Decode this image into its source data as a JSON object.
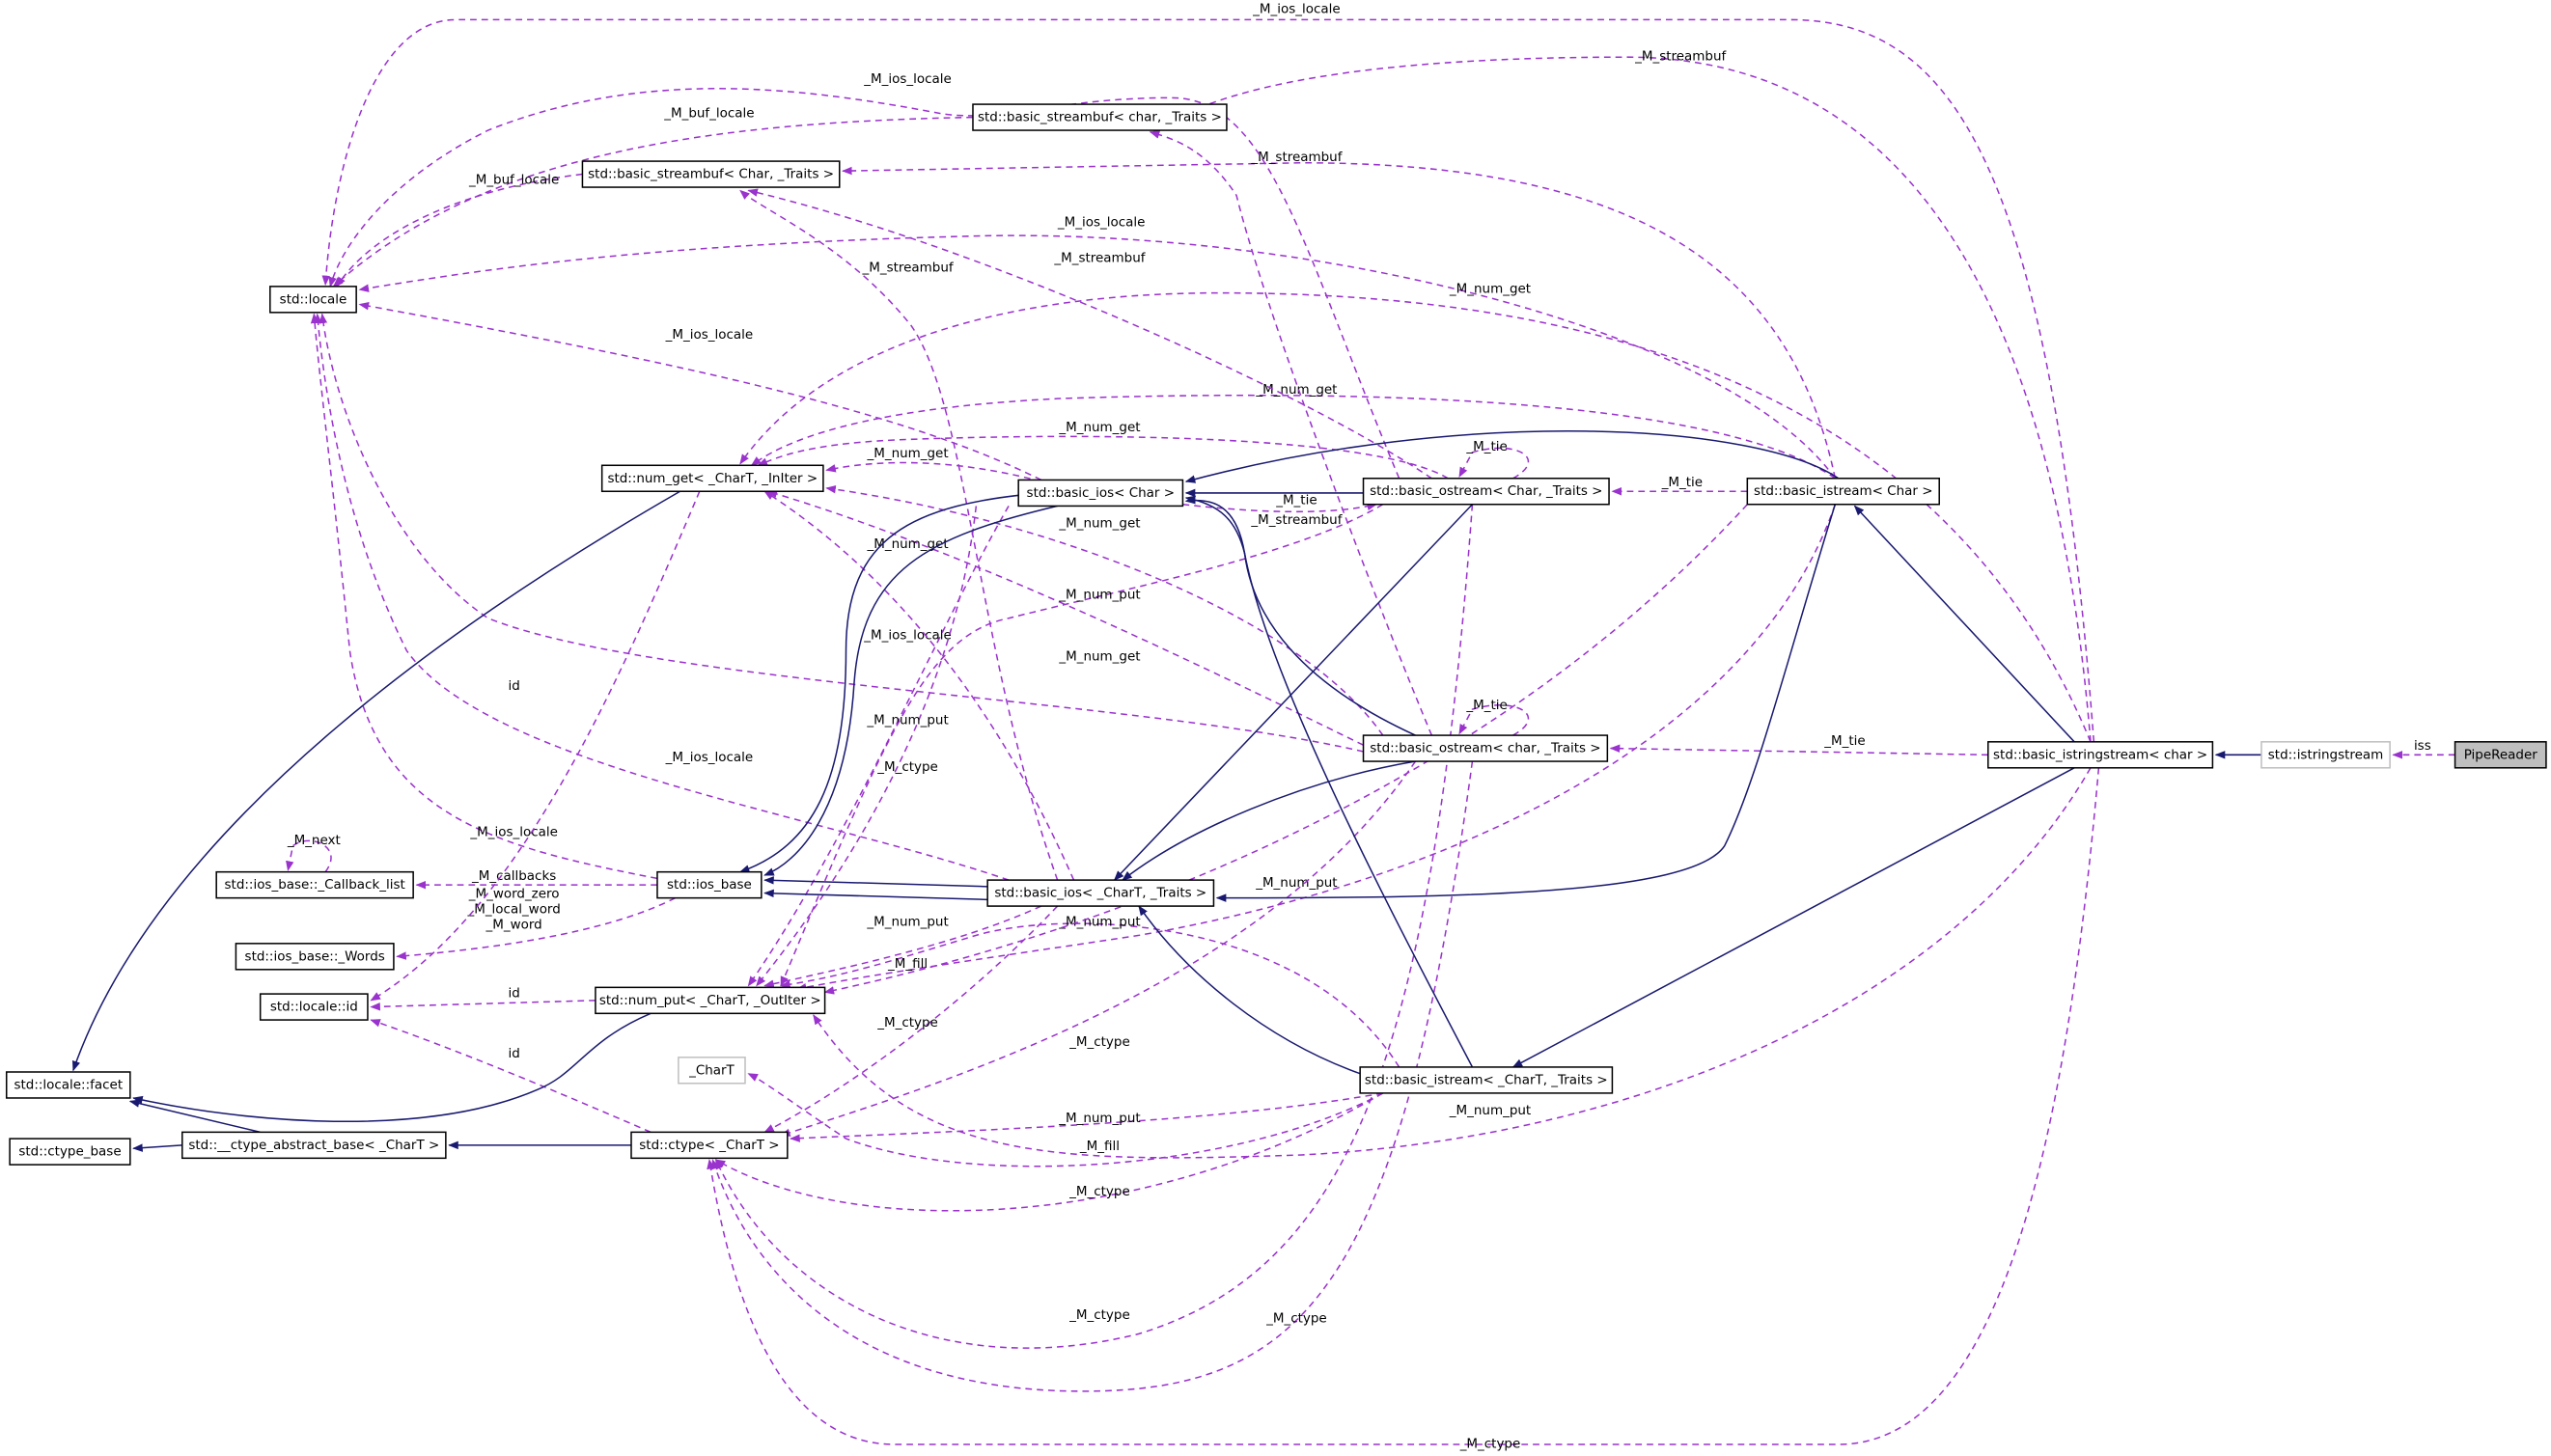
{
  "colors": {
    "usage_edge": "#9a32cd",
    "inheritance_edge": "#191970",
    "focus_node_fill": "#bfbfbf"
  },
  "nodes": [
    {
      "id": "locale",
      "label": "std::locale",
      "style": "normal"
    },
    {
      "id": "sb_char",
      "label": "std::basic_streambuf< char, _Traits >",
      "style": "normal"
    },
    {
      "id": "sb_Char",
      "label": "std::basic_streambuf< Char, _Traits >",
      "style": "normal"
    },
    {
      "id": "num_get",
      "label": "std::num_get< _CharT, _InIter >",
      "style": "normal"
    },
    {
      "id": "bios_Char",
      "label": "std::basic_ios< Char >",
      "style": "normal"
    },
    {
      "id": "bos_Char",
      "label": "std::basic_ostream< Char, _Traits >",
      "style": "normal"
    },
    {
      "id": "bis_Char",
      "label": "std::basic_istream< Char >",
      "style": "normal"
    },
    {
      "id": "cb_list",
      "label": "std::ios_base::_Callback_list",
      "style": "normal"
    },
    {
      "id": "ios_base",
      "label": "std::ios_base",
      "style": "normal"
    },
    {
      "id": "bios_CharT",
      "label": "std::basic_ios< _CharT, _Traits >",
      "style": "normal"
    },
    {
      "id": "bos_char",
      "label": "std::basic_ostream< char, _Traits >",
      "style": "normal"
    },
    {
      "id": "biss",
      "label": "std::basic_istringstream< char >",
      "style": "normal"
    },
    {
      "id": "iss",
      "label": "std::istringstream",
      "style": "gray"
    },
    {
      "id": "pipe",
      "label": "PipeReader",
      "style": "focus"
    },
    {
      "id": "words",
      "label": "std::ios_base::_Words",
      "style": "normal"
    },
    {
      "id": "locid",
      "label": "std::locale::id",
      "style": "normal"
    },
    {
      "id": "num_put",
      "label": "std::num_put< _CharT, _OutIter >",
      "style": "normal"
    },
    {
      "id": "chart",
      "label": "_CharT",
      "style": "gray"
    },
    {
      "id": "facet",
      "label": "std::locale::facet",
      "style": "normal"
    },
    {
      "id": "ctype_base",
      "label": "std::ctype_base",
      "style": "normal"
    },
    {
      "id": "cab",
      "label": "std::__ctype_abstract_base< _CharT >",
      "style": "normal"
    },
    {
      "id": "ctype",
      "label": "std::ctype< _CharT >",
      "style": "normal"
    },
    {
      "id": "bis_CharT",
      "label": "std::basic_istream< _CharT, _Traits >",
      "style": "normal"
    }
  ],
  "edges": [
    {
      "from": "pipe",
      "to": "iss",
      "kind": "use",
      "label": [
        "iss"
      ]
    },
    {
      "from": "biss",
      "to": "bos_char",
      "kind": "use",
      "label": [
        "_M_tie"
      ]
    },
    {
      "from": "biss",
      "to": "locale",
      "kind": "use",
      "label": [
        "_M_ios_locale"
      ]
    },
    {
      "from": "biss",
      "to": "sb_char",
      "kind": "use",
      "label": [
        "_M_streambuf"
      ]
    },
    {
      "from": "bis_Char",
      "to": "sb_Char",
      "kind": "use",
      "label": [
        "_M_streambuf"
      ]
    },
    {
      "from": "bis_Char",
      "to": "locale",
      "kind": "use",
      "label": [
        "_M_ios_locale"
      ]
    },
    {
      "from": "biss",
      "to": "num_get",
      "kind": "use",
      "label": [
        "_M_num_get"
      ]
    },
    {
      "from": "bis_Char",
      "to": "num_get",
      "kind": "use",
      "label": [
        "_M_num_get"
      ]
    },
    {
      "from": "bis_Char",
      "to": "bos_Char",
      "kind": "use",
      "label": [
        "_M_tie"
      ]
    },
    {
      "from": "bos_Char",
      "to": "bos_Char",
      "kind": "use",
      "label": [
        "_M_tie"
      ]
    },
    {
      "from": "bos_Char",
      "to": "num_get",
      "kind": "use",
      "label": [
        "_M_num_get"
      ]
    },
    {
      "from": "bos_Char",
      "to": "sb_Char",
      "kind": "use",
      "label": [
        "_M_streambuf"
      ]
    },
    {
      "from": "bios_Char",
      "to": "bos_Char",
      "kind": "use",
      "label": [
        "_M_tie"
      ]
    },
    {
      "from": "bios_Char",
      "to": "locale",
      "kind": "use",
      "label": [
        "_M_ios_locale"
      ]
    },
    {
      "from": "bios_Char",
      "to": "num_get",
      "kind": "use",
      "label": [
        "_M_num_get"
      ]
    },
    {
      "from": "bios_CharT",
      "to": "sb_Char",
      "kind": "use",
      "label": [
        "_M_streambuf"
      ]
    },
    {
      "from": "bos_char",
      "to": "bos_char",
      "kind": "use",
      "label": [
        "_M_tie"
      ]
    },
    {
      "from": "bos_char",
      "to": "sb_char",
      "kind": "use",
      "label": [
        "_M_streambuf"
      ]
    },
    {
      "from": "bos_char",
      "to": "num_get",
      "kind": "use",
      "label": [
        "_M_num_get"
      ]
    },
    {
      "from": "bos_char",
      "to": "num_get",
      "kind": "use",
      "label": [
        "_M_num_get"
      ]
    },
    {
      "from": "bos_char",
      "to": "locale",
      "kind": "use",
      "label": [
        "_M_ios_locale"
      ]
    },
    {
      "from": "bios_CharT",
      "to": "locale",
      "kind": "use",
      "label": [
        "_M_ios_locale"
      ]
    },
    {
      "from": "ios_base",
      "to": "locale",
      "kind": "use",
      "label": [
        "_M_ios_locale"
      ]
    },
    {
      "from": "ios_base",
      "to": "cb_list",
      "kind": "use",
      "label": [
        "_M_callbacks"
      ]
    },
    {
      "from": "ios_base",
      "to": "words",
      "kind": "use",
      "label": [
        "_M_word_zero",
        "_M_local_word",
        "_M_word"
      ]
    },
    {
      "from": "cb_list",
      "to": "cb_list",
      "kind": "use",
      "label": [
        "_M_next"
      ]
    },
    {
      "from": "num_get",
      "to": "locid",
      "kind": "use",
      "label": [
        "id"
      ]
    },
    {
      "from": "num_put",
      "to": "locid",
      "kind": "use",
      "label": [
        "id"
      ]
    },
    {
      "from": "ctype",
      "to": "locid",
      "kind": "use",
      "label": [
        "id"
      ]
    },
    {
      "from": "bios_CharT",
      "to": "num_put",
      "kind": "use",
      "label": [
        "_M_num_put"
      ]
    },
    {
      "from": "bios_CharT",
      "to": "ctype",
      "kind": "use",
      "label": [
        "_M_ctype"
      ]
    },
    {
      "from": "bios_Char",
      "to": "ctype",
      "kind": "use",
      "label": [
        "_M_ctype"
      ]
    },
    {
      "from": "bios_Char",
      "to": "num_put",
      "kind": "use",
      "label": [
        "_M_num_put"
      ]
    },
    {
      "from": "bos_Char",
      "to": "num_put",
      "kind": "use",
      "label": [
        "_M_num_put"
      ]
    },
    {
      "from": "bis_CharT",
      "to": "num_put",
      "kind": "use",
      "label": [
        "_M_num_put"
      ]
    },
    {
      "from": "bis_Char",
      "to": "num_put",
      "kind": "use",
      "label": [
        "_M_num_put"
      ]
    },
    {
      "from": "bis_Char",
      "to": "num_put",
      "kind": "use",
      "label": [
        "_M_fill"
      ]
    },
    {
      "from": "bos_char",
      "to": "ctype",
      "kind": "use",
      "label": [
        "_M_ctype"
      ]
    },
    {
      "from": "bis_CharT",
      "to": "ctype",
      "kind": "use",
      "label": [
        "_M_num_put"
      ]
    },
    {
      "from": "bis_CharT",
      "to": "chart",
      "kind": "use",
      "label": [
        "_M_fill"
      ]
    },
    {
      "from": "bis_CharT",
      "to": "ctype",
      "kind": "use",
      "label": [
        "_M_ctype"
      ]
    },
    {
      "from": "bos_Char",
      "to": "ctype",
      "kind": "use",
      "label": [
        "_M_ctype"
      ]
    },
    {
      "from": "bos_char",
      "to": "ctype",
      "kind": "use",
      "label": [
        "_M_ctype"
      ]
    },
    {
      "from": "biss",
      "to": "ctype",
      "kind": "use",
      "label": [
        "_M_ctype"
      ]
    },
    {
      "from": "biss",
      "to": "num_put",
      "kind": "use",
      "label": [
        "_M_num_put"
      ]
    },
    {
      "from": "sb_char",
      "to": "locale",
      "kind": "use",
      "label": [
        "_M_buf_locale"
      ]
    },
    {
      "from": "sb_Char",
      "to": "locale",
      "kind": "use",
      "label": [
        "_M_buf_locale"
      ]
    },
    {
      "from": "bos_Char",
      "to": "locale",
      "kind": "use",
      "label": [
        "_M_ios_locale"
      ]
    },
    {
      "from": "bios_CharT",
      "to": "num_get",
      "kind": "use",
      "label": [
        "_M_num_get"
      ]
    },
    {
      "from": "iss",
      "to": "biss",
      "kind": "inherit",
      "label": []
    },
    {
      "from": "biss",
      "to": "bis_Char",
      "kind": "inherit",
      "label": []
    },
    {
      "from": "biss",
      "to": "bis_CharT",
      "kind": "inherit",
      "label": []
    },
    {
      "from": "bis_Char",
      "to": "bios_Char",
      "kind": "inherit",
      "label": []
    },
    {
      "from": "bis_Char",
      "to": "bios_CharT",
      "kind": "inherit",
      "label": []
    },
    {
      "from": "bos_Char",
      "to": "bios_Char",
      "kind": "inherit",
      "label": []
    },
    {
      "from": "bos_Char",
      "to": "bios_CharT",
      "kind": "inherit",
      "label": []
    },
    {
      "from": "bos_char",
      "to": "bios_Char",
      "kind": "inherit",
      "label": []
    },
    {
      "from": "bos_char",
      "to": "bios_CharT",
      "kind": "inherit",
      "label": []
    },
    {
      "from": "bis_CharT",
      "to": "bios_Char",
      "kind": "inherit",
      "label": []
    },
    {
      "from": "bis_CharT",
      "to": "bios_CharT",
      "kind": "inherit",
      "label": []
    },
    {
      "from": "bios_Char",
      "to": "ios_base",
      "kind": "inherit",
      "label": []
    },
    {
      "from": "bios_Char",
      "to": "ios_base",
      "kind": "inherit",
      "label": []
    },
    {
      "from": "bios_CharT",
      "to": "ios_base",
      "kind": "inherit",
      "label": []
    },
    {
      "from": "bios_CharT",
      "to": "ios_base",
      "kind": "inherit",
      "label": []
    },
    {
      "from": "num_get",
      "to": "facet",
      "kind": "inherit",
      "label": []
    },
    {
      "from": "num_put",
      "to": "facet",
      "kind": "inherit",
      "label": []
    },
    {
      "from": "cab",
      "to": "facet",
      "kind": "inherit",
      "label": []
    },
    {
      "from": "cab",
      "to": "ctype_base",
      "kind": "inherit",
      "label": []
    },
    {
      "from": "ctype",
      "to": "cab",
      "kind": "inherit",
      "label": []
    }
  ]
}
